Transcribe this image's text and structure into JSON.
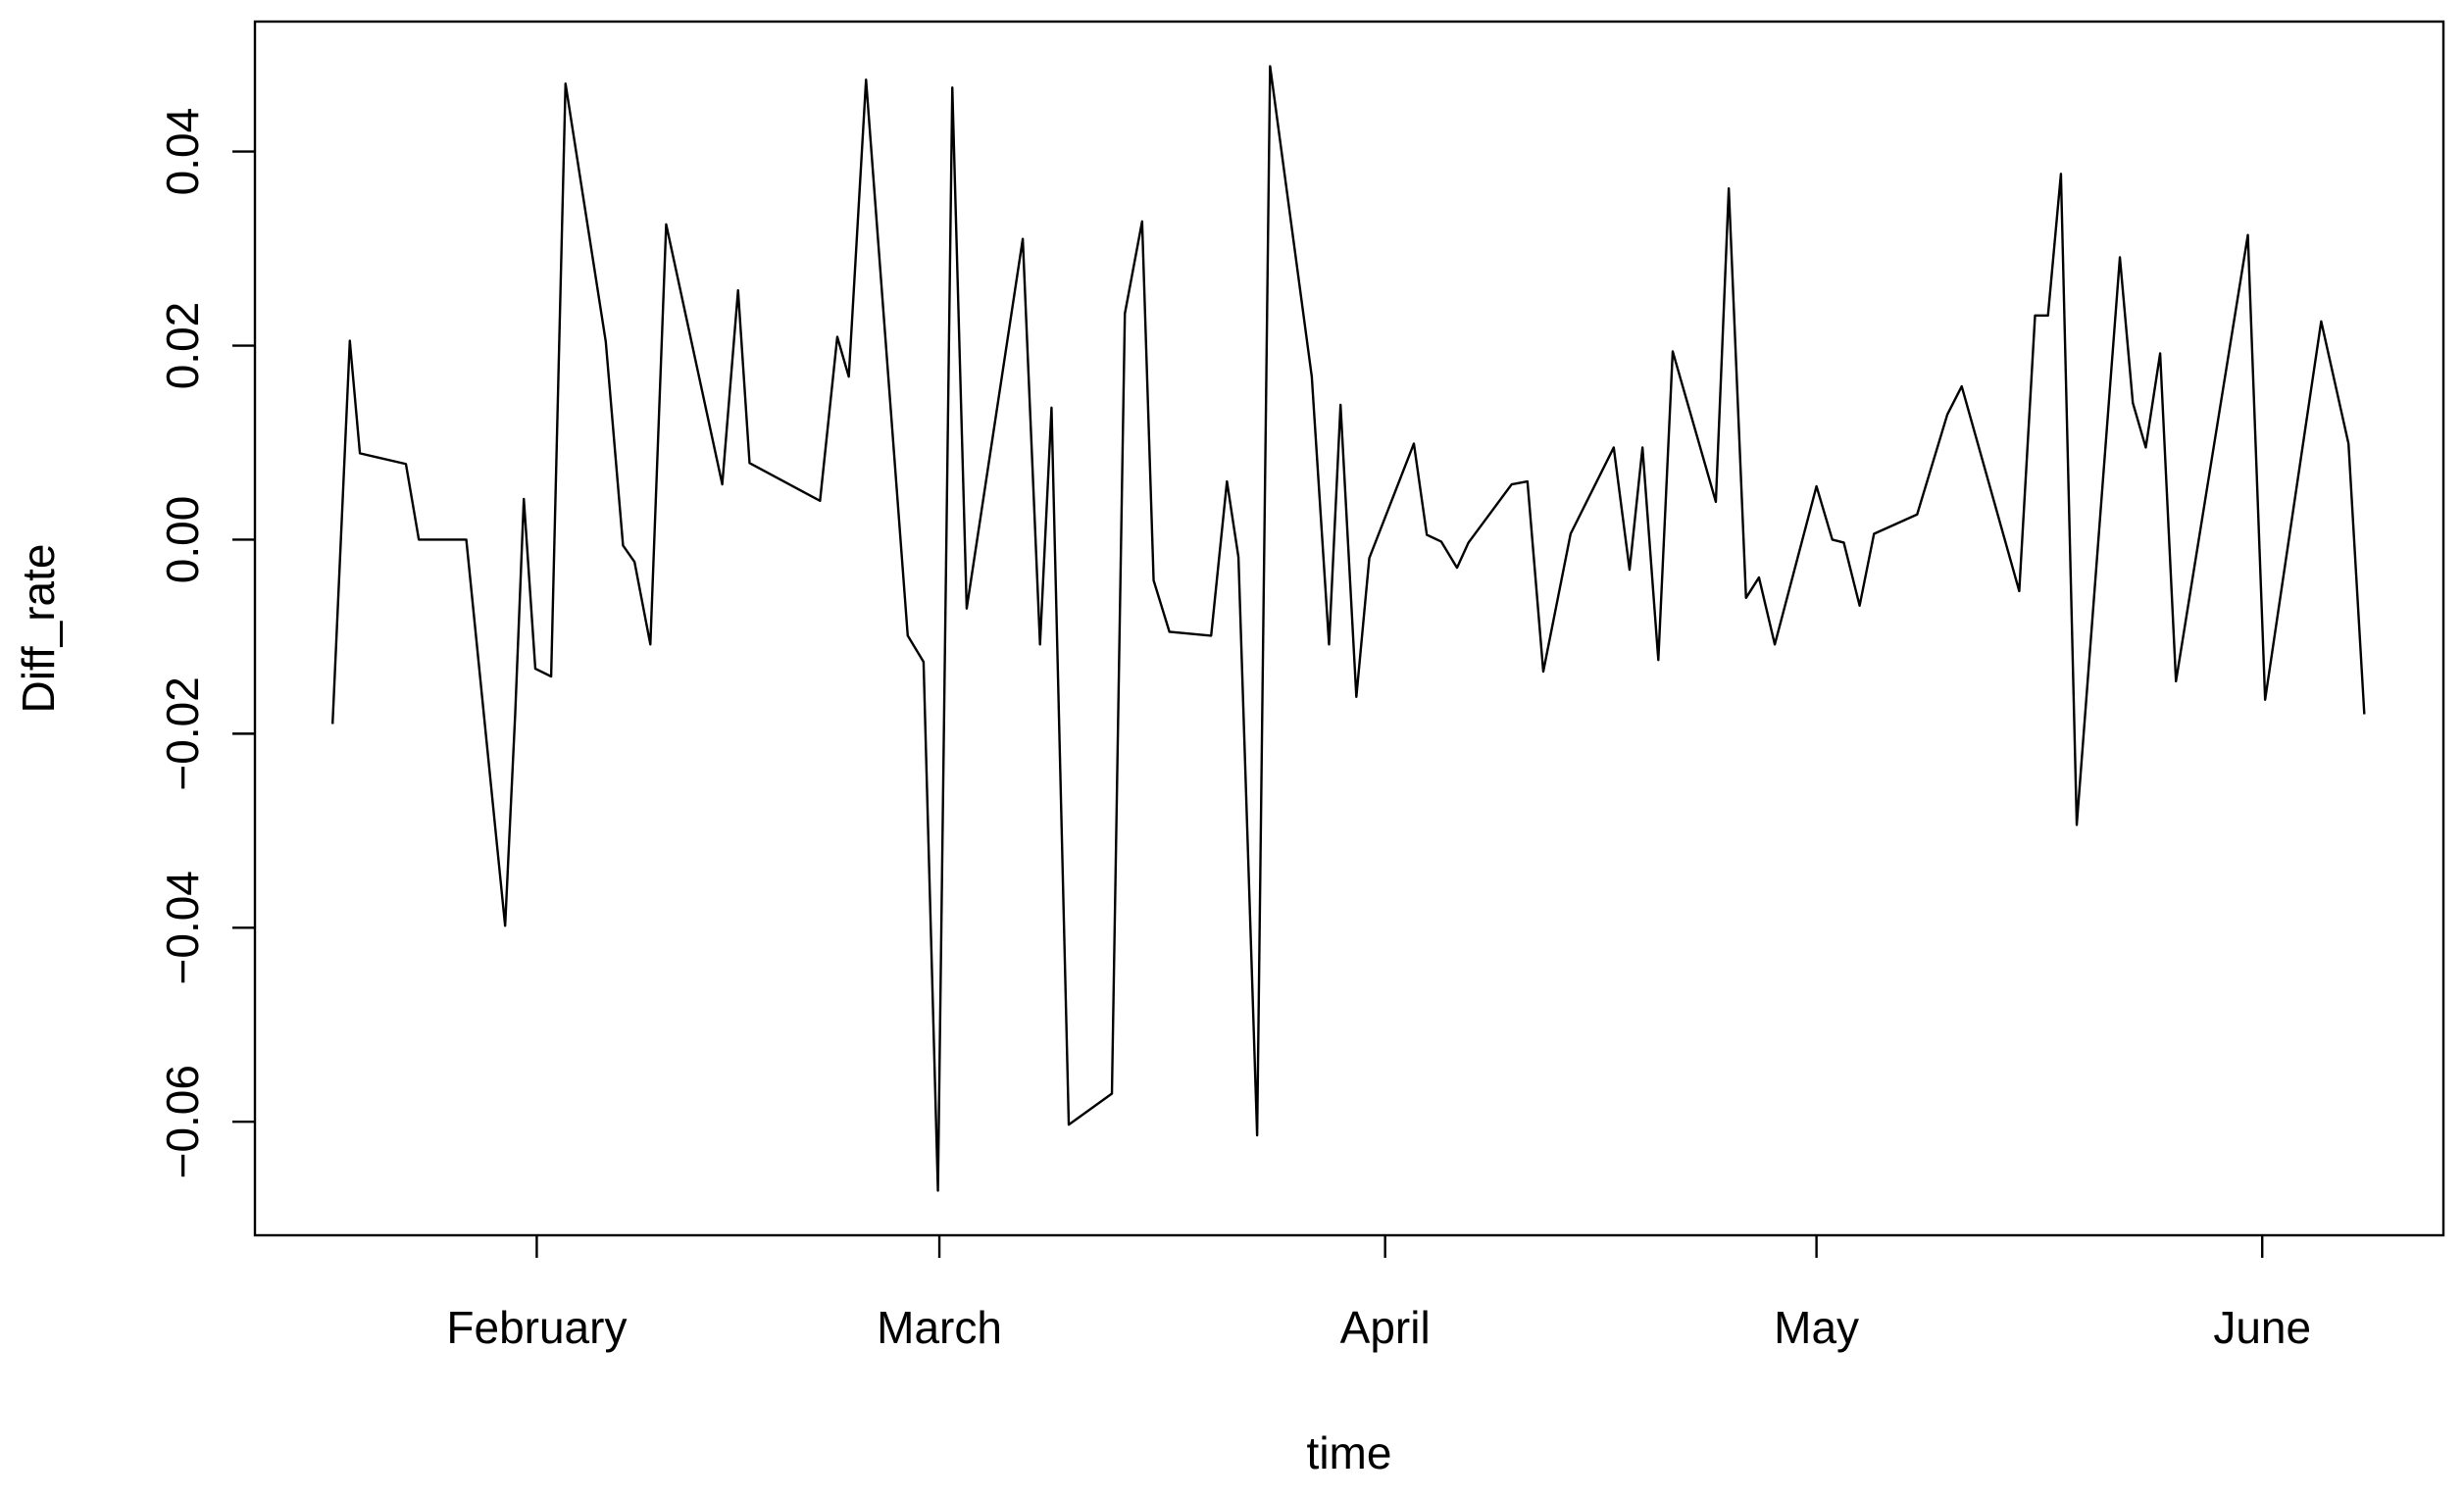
{
  "chart_data": {
    "type": "line",
    "x_label": "time",
    "y_label": "Diff_rate",
    "x": [
      17.8,
      19.0,
      19.7,
      22.9,
      23.8,
      27.1,
      29.8,
      30.5,
      31.1,
      31.9,
      33.0,
      34.0,
      36.8,
      38.0,
      38.8,
      39.9,
      41.0,
      44.9,
      46.0,
      46.8,
      51.7,
      52.9,
      53.7,
      54.9,
      57.8,
      58.9,
      59.9,
      60.4,
      60.9,
      61.9,
      65.8,
      67.0,
      67.8,
      69.0,
      72.0,
      72.9,
      74.1,
      74.9,
      76.0,
      78.9,
      80.0,
      80.8,
      82.1,
      83.0,
      85.9,
      87.1,
      87.9,
      89.0,
      89.9,
      93.0,
      93.9,
      94.9,
      96.0,
      96.8,
      99.8,
      100.9,
      102.0,
      103.9,
      106.9,
      108.0,
      108.9,
      110.0,
      111.0,
      114.0,
      114.9,
      116.1,
      117.0,
      118.1,
      121.0,
      122.1,
      122.9,
      124.0,
      125.0,
      128.0,
      130.1,
      131.1,
      135.1,
      136.2,
      137.1,
      138.0,
      139.1,
      142.1,
      143.0,
      143.9,
      144.9,
      146.0,
      151.0,
      152.2,
      156.1,
      158.0,
      159.1
    ],
    "series": [
      {
        "name": "Diff_rate",
        "color": "#000000",
        "values": [
          -0.019,
          0.0205,
          0.0089,
          0.0078,
          0.0,
          0.0,
          -0.0398,
          -0.018,
          0.0042,
          -0.0133,
          -0.0141,
          0.047,
          0.0204,
          -0.0006,
          -0.0023,
          -0.0108,
          0.0325,
          0.0057,
          0.0257,
          0.0079,
          0.004,
          0.0209,
          0.0168,
          0.0474,
          -0.0099,
          -0.0126,
          -0.0671,
          -0.01,
          0.0466,
          -0.0071,
          0.031,
          -0.0108,
          0.0136,
          -0.0603,
          -0.0571,
          0.0233,
          0.0328,
          -0.0042,
          -0.0095,
          -0.0099,
          0.006,
          -0.0018,
          -0.0614,
          0.0488,
          0.0168,
          -0.0108,
          0.0139,
          -0.0162,
          -0.0019,
          0.0099,
          0.0005,
          -0.0002,
          -0.0029,
          -0.0003,
          0.0057,
          0.006,
          -0.0136,
          0.0006,
          0.0095,
          -0.0031,
          0.0095,
          -0.0124,
          0.0194,
          0.0039,
          0.0362,
          -0.006,
          -0.0039,
          -0.0108,
          0.0055,
          0.0,
          -0.0003,
          -0.0068,
          0.0006,
          0.0026,
          0.0129,
          0.0158,
          -0.0053,
          0.0231,
          0.0231,
          0.0377,
          -0.0294,
          0.0291,
          0.0141,
          0.0095,
          0.0192,
          -0.0146,
          0.0314,
          -0.0165,
          0.0225,
          0.0099,
          -0.018
        ]
      }
    ],
    "xlim": [
      12.4,
      164.6
    ],
    "xticks": [
      {
        "value": 32,
        "label": "February"
      },
      {
        "value": 60,
        "label": "March"
      },
      {
        "value": 91,
        "label": "April"
      },
      {
        "value": 121,
        "label": "May"
      },
      {
        "value": 152,
        "label": "June"
      }
    ],
    "ylim": [
      -0.0717,
      0.0534
    ],
    "yticks": [
      {
        "value": -0.06,
        "label": "−0.06"
      },
      {
        "value": -0.04,
        "label": "−0.04"
      },
      {
        "value": -0.02,
        "label": "−0.02"
      },
      {
        "value": 0,
        "label": "0.00"
      },
      {
        "value": 0.02,
        "label": "0.02"
      },
      {
        "value": 0.04,
        "label": "0.04"
      }
    ],
    "grid": false
  }
}
